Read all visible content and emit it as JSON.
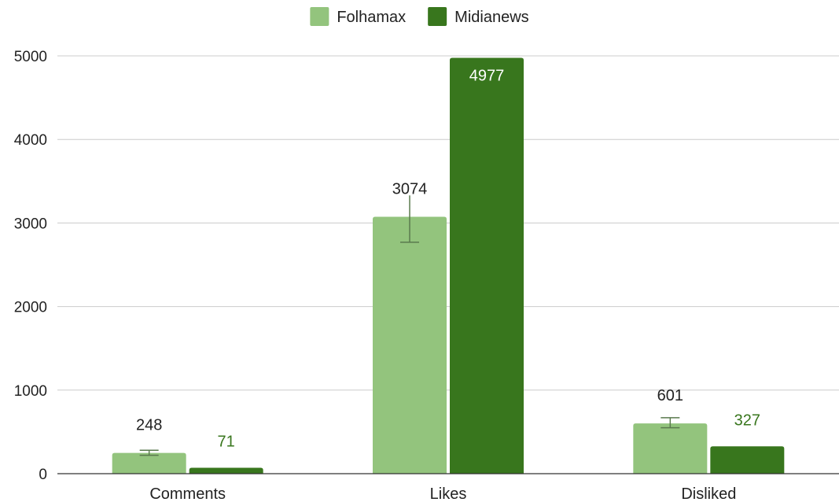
{
  "chart_data": {
    "type": "bar",
    "title": "",
    "xlabel": "",
    "ylabel": "",
    "categories": [
      "Comments",
      "Likes",
      "Disliked"
    ],
    "ylim": [
      0,
      5000
    ],
    "yticks": [
      0,
      1000,
      2000,
      3000,
      4000,
      5000
    ],
    "grid": true,
    "legend_position": "top-center",
    "series": [
      {
        "name": "Folhamax",
        "color": "#93c47d",
        "values": [
          248,
          3074,
          601
        ],
        "error_bars": [
          [
            220,
            280
          ],
          [
            2770,
            3330
          ],
          [
            550,
            670
          ]
        ],
        "label_position": "outside-above"
      },
      {
        "name": "Midianews",
        "color": "#38761d",
        "values": [
          71,
          4977,
          327
        ],
        "label_position": "inside-top"
      }
    ],
    "data_labels": {
      "Folhamax": [
        "248",
        "3074",
        "601"
      ],
      "Midianews": [
        "71",
        "4977",
        "327"
      ]
    }
  }
}
